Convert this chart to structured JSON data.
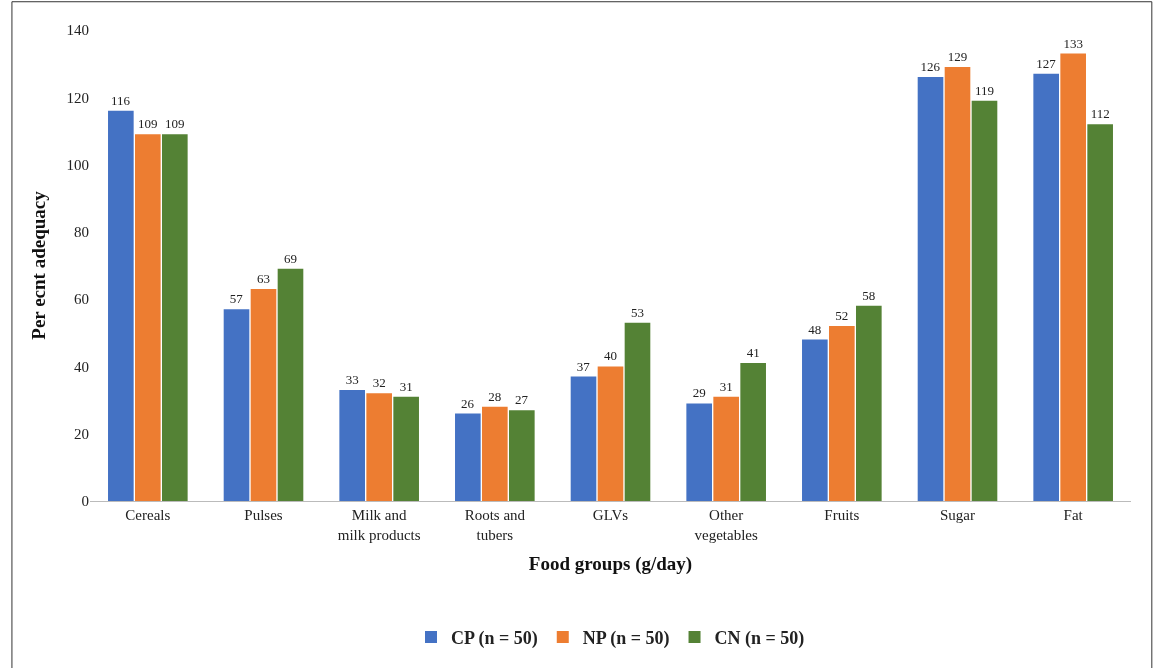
{
  "chart_data": {
    "type": "bar",
    "xlabel": "Food groups (g/day)",
    "ylabel": "Per ecnt adequacy",
    "categories": [
      "Cereals",
      "Pulses",
      "Milk and\nmilk products",
      "Roots and\ntubers",
      "GLVs",
      "Other\nvegetables",
      "Fruits",
      "Sugar",
      "Fat"
    ],
    "series": [
      {
        "name": "CP (n = 50)",
        "color": "#4472c4",
        "values": [
          116,
          57,
          33,
          26,
          37,
          29,
          48,
          126,
          127
        ]
      },
      {
        "name": "NP (n = 50)",
        "color": "#ed7d31",
        "values": [
          109,
          63,
          32,
          28,
          40,
          31,
          52,
          129,
          133
        ]
      },
      {
        "name": "CN (n = 50)",
        "color": "#548235",
        "values": [
          109,
          69,
          31,
          27,
          53,
          41,
          58,
          119,
          112
        ]
      }
    ],
    "ylim": [
      0,
      140
    ],
    "yticks": [
      0,
      20,
      40,
      60,
      80,
      100,
      120,
      140
    ],
    "data_labels": true,
    "legend": "bottom"
  }
}
